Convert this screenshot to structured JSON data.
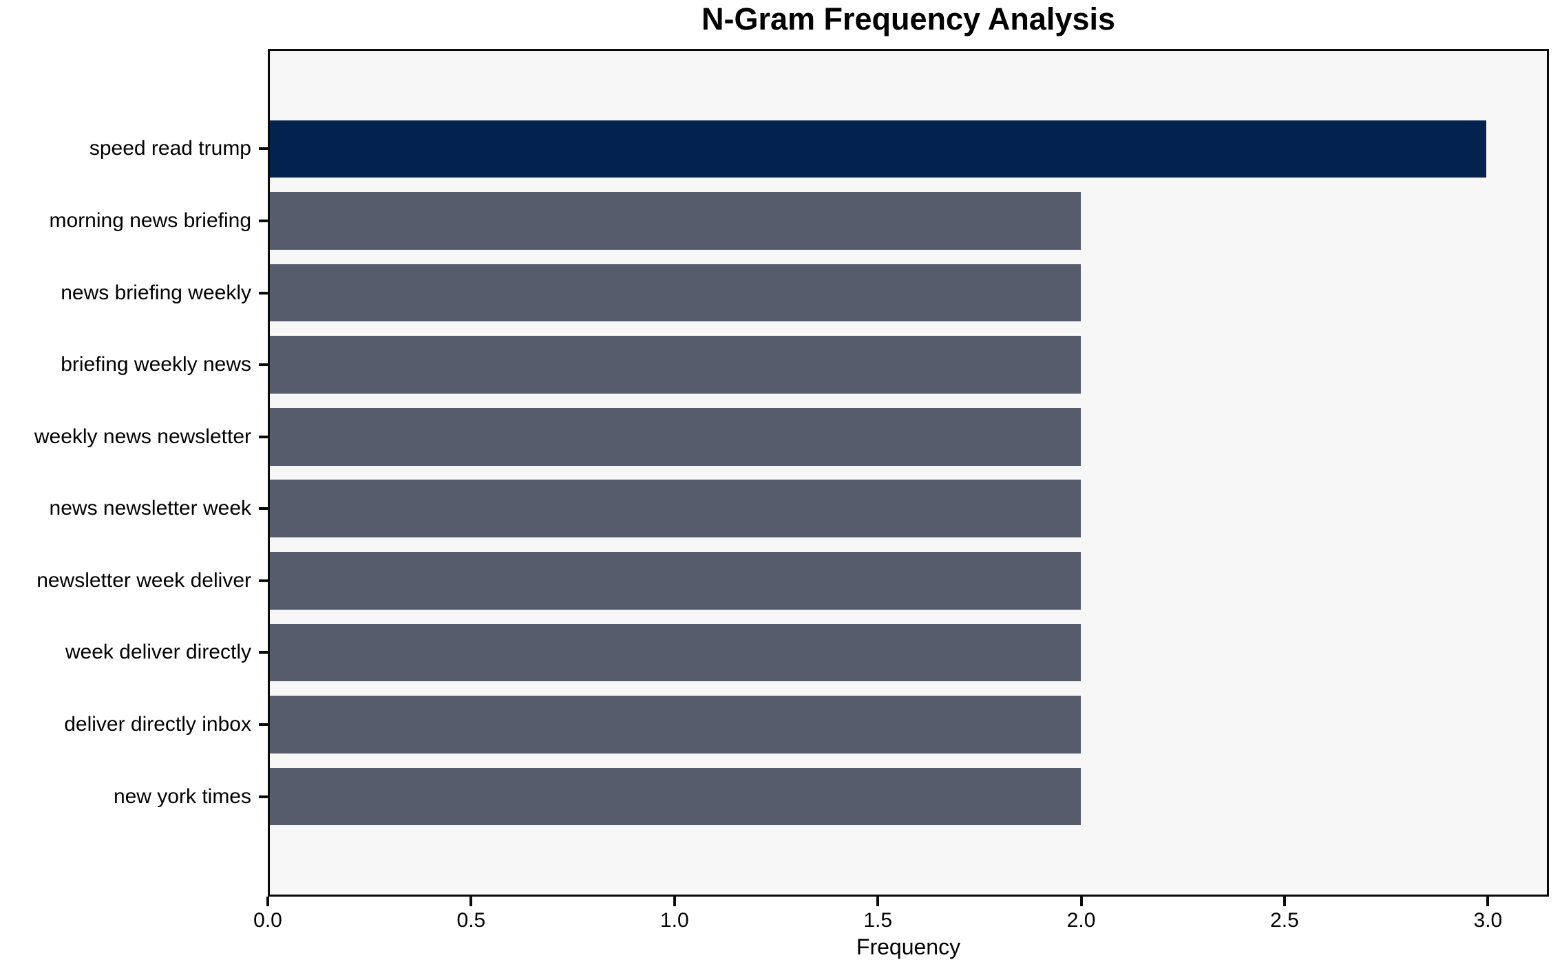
{
  "chart_data": {
    "type": "bar",
    "orientation": "horizontal",
    "title": "N-Gram Frequency Analysis",
    "xlabel": "Frequency",
    "ylabel": "",
    "categories": [
      "speed read trump",
      "morning news briefing",
      "news briefing weekly",
      "briefing weekly news",
      "weekly news newsletter",
      "news newsletter week",
      "newsletter week deliver",
      "week deliver directly",
      "deliver directly inbox",
      "new york times"
    ],
    "values": [
      3,
      2,
      2,
      2,
      2,
      2,
      2,
      2,
      2,
      2
    ],
    "highlight_index": 0,
    "xlim": [
      0,
      3.15
    ],
    "xticks": [
      0.0,
      0.5,
      1.0,
      1.5,
      2.0,
      2.5,
      3.0
    ],
    "grid": false,
    "legend": null,
    "colors": {
      "highlight": "#03234E",
      "default": "#565C6C",
      "plot_bg": "#F7F7F7",
      "figure_bg": "#FFFFFF",
      "spine": "#0A0A0A",
      "text": "#000000"
    }
  }
}
